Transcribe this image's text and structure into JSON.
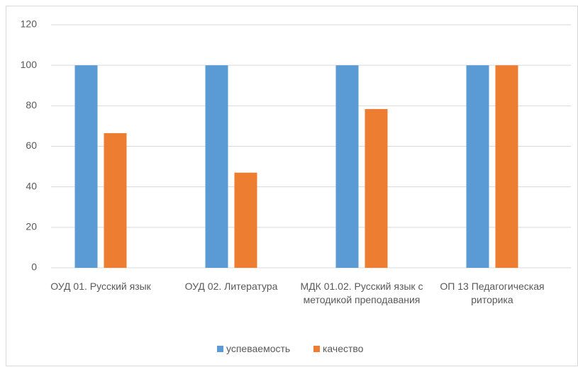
{
  "chart_data": {
    "type": "bar",
    "categories": [
      "ОУД 01. Русский язык",
      "ОУД 02. Литература",
      "МДК 01.02. Русский язык с методикой преподавания",
      "ОП 13 Педагогическая риторика"
    ],
    "series": [
      {
        "name": "успеваемость",
        "color": "#5b9bd5",
        "values": [
          100,
          100,
          100,
          100
        ]
      },
      {
        "name": "качество",
        "color": "#ed7d31",
        "values": [
          66.5,
          47,
          78.4,
          100
        ]
      }
    ],
    "ylim": [
      0,
      120
    ],
    "yticks": [
      0,
      20,
      40,
      60,
      80,
      100,
      120
    ],
    "grid": true,
    "legend": "bottom"
  }
}
